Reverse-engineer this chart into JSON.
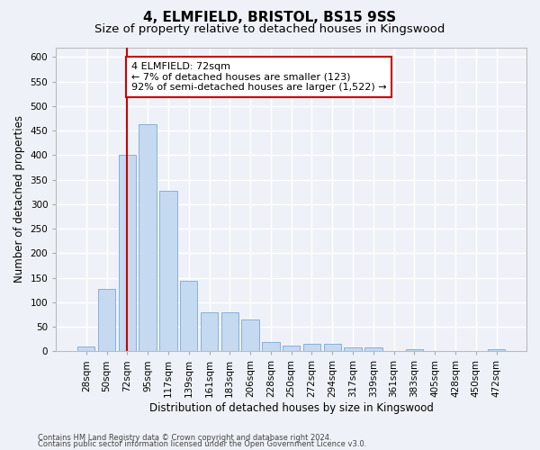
{
  "title": "4, ELMFIELD, BRISTOL, BS15 9SS",
  "subtitle": "Size of property relative to detached houses in Kingswood",
  "xlabel": "Distribution of detached houses by size in Kingswood",
  "ylabel": "Number of detached properties",
  "categories": [
    "28sqm",
    "50sqm",
    "72sqm",
    "95sqm",
    "117sqm",
    "139sqm",
    "161sqm",
    "183sqm",
    "206sqm",
    "228sqm",
    "250sqm",
    "272sqm",
    "294sqm",
    "317sqm",
    "339sqm",
    "361sqm",
    "383sqm",
    "405sqm",
    "428sqm",
    "450sqm",
    "472sqm"
  ],
  "values": [
    9,
    128,
    401,
    463,
    328,
    143,
    79,
    79,
    65,
    19,
    12,
    15,
    15,
    7,
    7,
    0,
    5,
    0,
    0,
    0,
    5
  ],
  "bar_color": "#c5d9f0",
  "bar_edge_color": "#7aa8d4",
  "highlight_index": 2,
  "highlight_color": "#cc0000",
  "ylim": [
    0,
    620
  ],
  "yticks": [
    0,
    50,
    100,
    150,
    200,
    250,
    300,
    350,
    400,
    450,
    500,
    550,
    600
  ],
  "annotation_line1": "4 ELMFIELD: 72sqm",
  "annotation_line2": "← 7% of detached houses are smaller (123)",
  "annotation_line3": "92% of semi-detached houses are larger (1,522) →",
  "footer_line1": "Contains HM Land Registry data © Crown copyright and database right 2024.",
  "footer_line2": "Contains public sector information licensed under the Open Government Licence v3.0.",
  "background_color": "#eef2f8",
  "plot_bg_color": "#eef2f8",
  "grid_color": "#ffffff",
  "title_fontsize": 11,
  "subtitle_fontsize": 9.5,
  "axis_label_fontsize": 8.5,
  "tick_fontsize": 7.5,
  "annotation_fontsize": 8,
  "footer_fontsize": 6,
  "annotation_box_color": "#ffffff",
  "annotation_box_edge": "#cc0000"
}
